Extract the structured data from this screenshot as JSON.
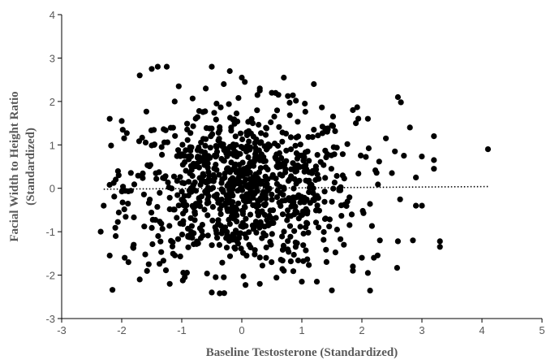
{
  "chart_data": {
    "type": "scatter",
    "title": "",
    "xlabel": "Baseline Testosterone (Standardized)",
    "ylabel_line1": "Facial Width to Height Ratio",
    "ylabel_line2": "(Standardized)",
    "xlim": [
      -3,
      5
    ],
    "ylim": [
      -3,
      4
    ],
    "xticks": [
      "-3",
      "-2",
      "-1",
      "0",
      "1",
      "2",
      "3",
      "4",
      "5"
    ],
    "yticks": [
      "-3",
      "-2",
      "-1",
      "0",
      "1",
      "2",
      "3",
      "4"
    ],
    "grid": false,
    "legend": "none",
    "marker_color": "#000000",
    "trendline": {
      "style": "dotted",
      "x": [
        -2.3,
        4.1
      ],
      "y": [
        -0.02,
        0.04
      ]
    },
    "points_highlighted": [
      [
        4.1,
        0.9
      ],
      [
        3.3,
        -1.22
      ],
      [
        3.3,
        -1.35
      ],
      [
        3.2,
        1.2
      ],
      [
        3.2,
        0.65
      ],
      [
        3.2,
        0.45
      ],
      [
        3.0,
        -0.4
      ],
      [
        2.9,
        0.25
      ],
      [
        2.9,
        -0.4
      ],
      [
        2.85,
        -1.2
      ],
      [
        2.8,
        1.4
      ],
      [
        2.7,
        0.75
      ],
      [
        2.6,
        2.1
      ],
      [
        2.65,
        1.98
      ],
      [
        2.6,
        -1.22
      ],
      [
        2.5,
        0.35
      ],
      [
        2.55,
        0.85
      ],
      [
        2.4,
        1.15
      ],
      [
        2.3,
        -1.2
      ],
      [
        2.2,
        -1.6
      ],
      [
        2.1,
        -1.95
      ],
      [
        2.0,
        -1.6
      ],
      [
        2.1,
        1.6
      ],
      [
        1.9,
        1.5
      ],
      [
        1.85,
        -1.8
      ],
      [
        1.85,
        -1.9
      ],
      [
        1.85,
        1.8
      ],
      [
        1.7,
        -1.3
      ],
      [
        1.5,
        -2.35
      ],
      [
        1.5,
        1.45
      ],
      [
        1.25,
        -2.15
      ],
      [
        1.0,
        -2.15
      ],
      [
        1.2,
        1.35
      ],
      [
        1.2,
        2.4
      ],
      [
        1.05,
        1.95
      ],
      [
        0.7,
        2.55
      ],
      [
        0.5,
        2.2
      ],
      [
        0.3,
        2.3
      ],
      [
        0.05,
        2.45
      ],
      [
        0.0,
        2.55
      ],
      [
        -0.3,
        2.4
      ],
      [
        -0.2,
        2.7
      ],
      [
        -0.5,
        2.8
      ],
      [
        -1.05,
        2.35
      ],
      [
        -1.5,
        2.75
      ],
      [
        -1.25,
        2.8
      ],
      [
        -1.4,
        2.8
      ],
      [
        -1.7,
        2.6
      ],
      [
        -2.2,
        1.6
      ],
      [
        -2.0,
        1.55
      ],
      [
        -2.1,
        0.2
      ],
      [
        -2.05,
        0.3
      ],
      [
        -2.3,
        -0.4
      ],
      [
        -2.35,
        -1.0
      ],
      [
        -2.1,
        -1.1
      ],
      [
        -2.2,
        -1.55
      ],
      [
        -1.95,
        -1.6
      ],
      [
        -1.8,
        -1.3
      ],
      [
        -1.7,
        -2.1
      ],
      [
        -1.55,
        -1.75
      ],
      [
        -1.2,
        -2.2
      ],
      [
        -0.95,
        -2.05
      ],
      [
        -0.5,
        -2.4
      ],
      [
        -0.3,
        -2.05
      ],
      [
        0.3,
        -2.2
      ],
      [
        0.7,
        -1.9
      ]
    ],
    "point_cloud": {
      "n": 900,
      "x_mean": 0.0,
      "x_sd": 0.95,
      "y_mean": 0.0,
      "y_sd": 0.92,
      "x_range": [
        -2.3,
        3.3
      ],
      "y_range": [
        -2.45,
        2.8
      ]
    }
  }
}
